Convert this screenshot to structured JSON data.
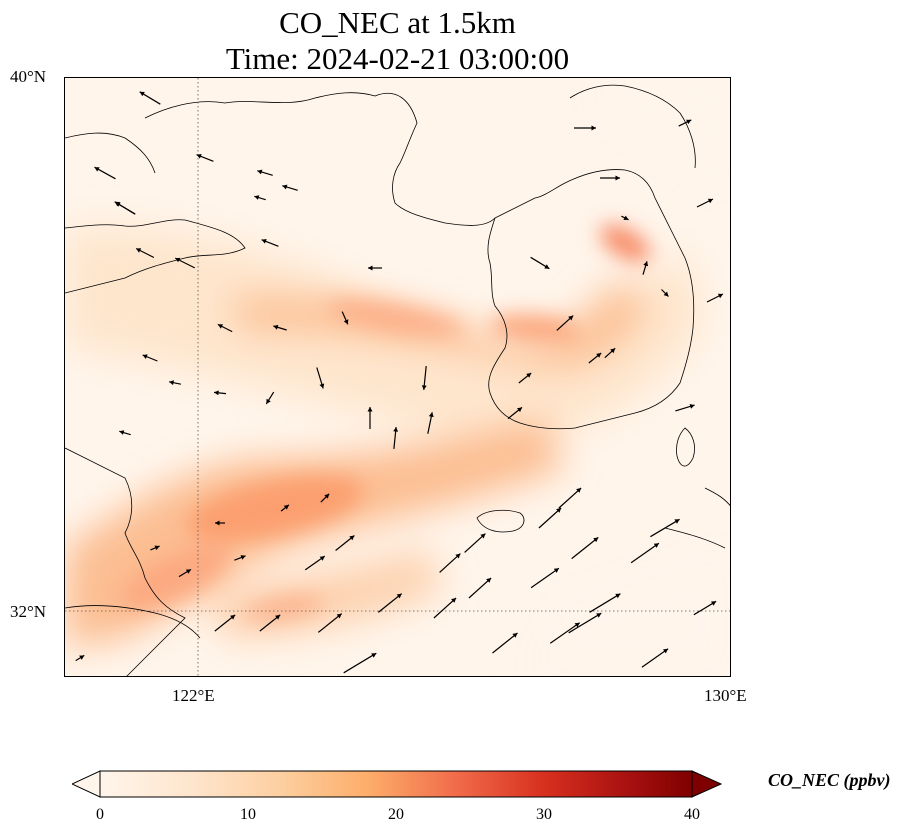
{
  "title": {
    "line1": "CO_NEC at 1.5km",
    "line2": "Time: 2024-02-21 03:00:00"
  },
  "axes": {
    "lat_labels": [
      "40°N",
      "32°N"
    ],
    "lon_labels": [
      "122°E",
      "130°E"
    ],
    "lon_range": [
      120,
      130
    ],
    "lat_range": [
      31,
      40
    ],
    "gridlines": {
      "lon": [
        122
      ],
      "lat": [
        32
      ],
      "style": "dotted"
    }
  },
  "colorbar": {
    "label": "CO_NEC (ppbv)",
    "colormap": "OrRd",
    "range": [
      0,
      40
    ],
    "ticks": [
      "0",
      "10",
      "20",
      "30",
      "40"
    ],
    "extend": "both",
    "colors": [
      "#fff5eb",
      "#fdd5ab",
      "#fc8d59",
      "#d7301f",
      "#7f0000"
    ]
  },
  "map_layers": {
    "field": "CO concentration",
    "vectors": "wind",
    "coastlines": true
  }
}
